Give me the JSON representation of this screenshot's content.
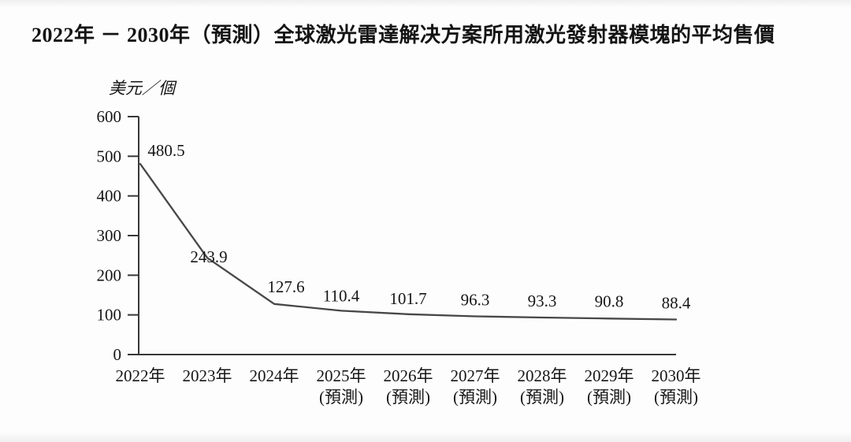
{
  "title": "2022年 － 2030年（預測）全球激光雷達解决方案所用激光發射器模塊的平均售價",
  "chart_data": {
    "type": "line",
    "title": "2022年 － 2030年（預測）全球激光雷達解决方案所用激光發射器模塊的平均售價",
    "ylabel": "美元／個",
    "xlabel": "",
    "categories": [
      "2022年",
      "2023年",
      "2024年",
      "2025年",
      "2026年",
      "2027年",
      "2028年",
      "2029年",
      "2030年"
    ],
    "category_notes": [
      "",
      "",
      "",
      "(預測)",
      "(預測)",
      "(預測)",
      "(預測)",
      "(預測)",
      "(預測)"
    ],
    "values": [
      480.5,
      243.9,
      127.6,
      110.4,
      101.7,
      96.3,
      93.3,
      90.8,
      88.4
    ],
    "value_labels": [
      "480.5",
      "243.9",
      "127.6",
      "110.4",
      "101.7",
      "96.3",
      "93.3",
      "90.8",
      "88.4"
    ],
    "yticks": [
      0,
      100,
      200,
      300,
      400,
      500,
      600
    ],
    "ylim": [
      0,
      600
    ],
    "grid": false,
    "legend": "none",
    "line_color": "#474747",
    "axis_color": "#383838",
    "text_color": "#161616"
  }
}
